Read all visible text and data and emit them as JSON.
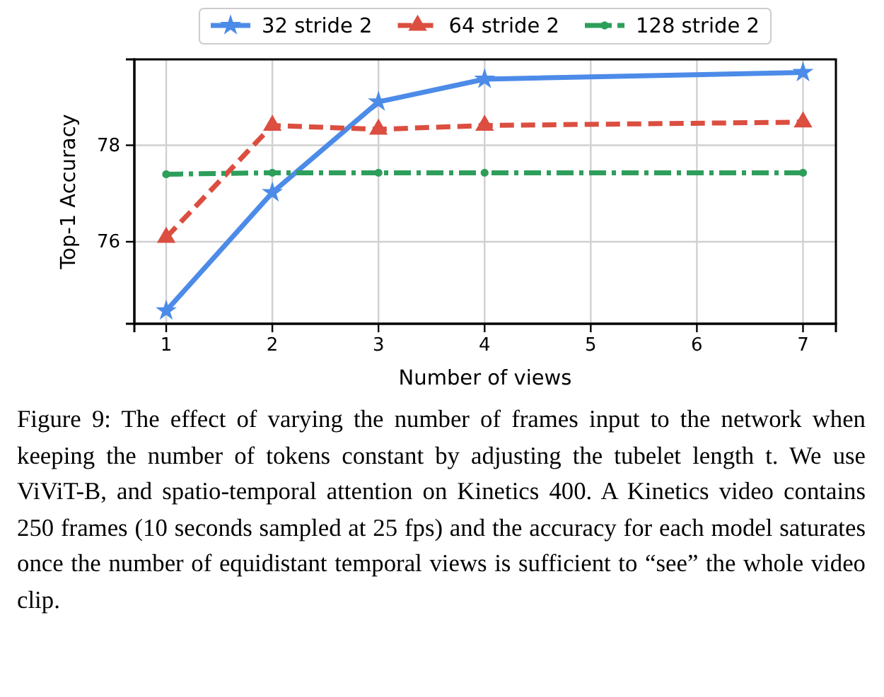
{
  "chart_data": {
    "type": "line",
    "xlabel": "Number of views",
    "ylabel": "Top-1 Accuracy",
    "x": [
      1,
      2,
      3,
      4,
      7
    ],
    "series": [
      {
        "name": "32 stride 2",
        "color": "#4c8be8",
        "values": [
          74.57,
          77.02,
          78.9,
          79.37,
          79.51
        ],
        "marker": "star",
        "line_style": "solid"
      },
      {
        "name": "64 stride 2",
        "color": "#db4e40",
        "values": [
          76.09,
          78.41,
          78.33,
          78.41,
          78.48
        ],
        "marker": "triangle",
        "line_style": "dashed"
      },
      {
        "name": "128 stride 2",
        "color": "#2e9e5b",
        "values": [
          77.4,
          77.43,
          77.43,
          77.43,
          77.43
        ],
        "marker": "circle",
        "line_style": "dashdot"
      }
    ],
    "xlim": [
      0.7,
      7.31
    ],
    "xticks": [
      1,
      2,
      3,
      4,
      5,
      6,
      7
    ],
    "ylim": [
      74.3,
      79.78
    ],
    "yticks": [
      76,
      78
    ],
    "grid": true,
    "legend": "top",
    "annotations": [
      "Figure 9: The effect of varying the number of frames input to the network when keeping the number of tokens constant by adjusting the tubelet length t. We use ViViT-B, and spatio-temporal attention on Kinetics 400. A Kinetics video contains 250 frames (10 seconds sampled at 25 fps) and the accuracy for each model saturates once the number of equidistant temporal views is sufficient to “see” the whole video clip."
    ]
  }
}
